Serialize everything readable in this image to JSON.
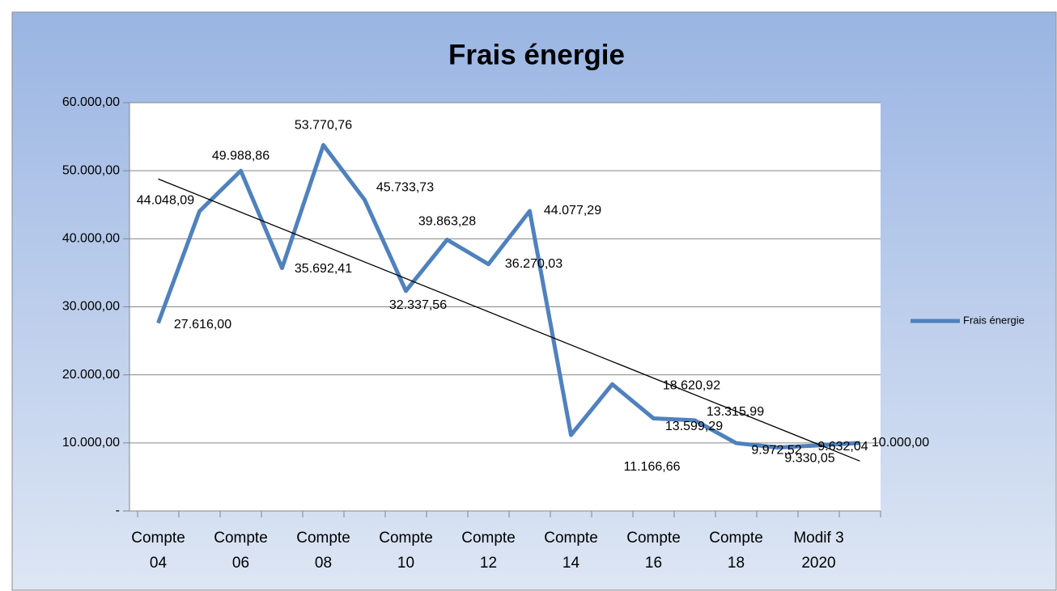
{
  "chart_data": {
    "type": "line",
    "title": "Frais énergie",
    "categories": [
      "Compte 04",
      null,
      "Compte 06",
      null,
      "Compte 08",
      null,
      "Compte 10",
      null,
      "Compte 12",
      null,
      "Compte 14",
      null,
      "Compte 16",
      null,
      "Compte 18",
      null,
      "Modif 3 2020",
      null
    ],
    "series": [
      {
        "name": "Frais énergie",
        "color": "#4f81bd",
        "values": [
          27616.0,
          44048.09,
          49988.86,
          35692.41,
          53770.76,
          45733.73,
          32337.56,
          39863.28,
          36270.03,
          44077.29,
          11166.66,
          18620.92,
          13599.29,
          13315.99,
          9972.52,
          9330.05,
          9632.04,
          10000.0
        ],
        "value_labels": [
          "27.616,00",
          "44.048,09",
          "49.988,86",
          "35.692,41",
          "53.770,76",
          "45.733,73",
          "32.337,56",
          "39.863,28",
          "36.270,03",
          "44.077,29",
          "11.166,66",
          "18.620,92",
          "13.599,29",
          "13.315,99",
          "9.972,52",
          "9.330,05",
          "9.632,04",
          "10.000,00"
        ]
      }
    ],
    "ylim": [
      0,
      60000
    ],
    "yticks": [
      {
        "value": 0,
        "label": "-"
      },
      {
        "value": 10000,
        "label": "10.000,00"
      },
      {
        "value": 20000,
        "label": "20.000,00"
      },
      {
        "value": 30000,
        "label": "30.000,00"
      },
      {
        "value": 40000,
        "label": "40.000,00"
      },
      {
        "value": 50000,
        "label": "50.000,00"
      },
      {
        "value": 60000,
        "label": "60.000,00"
      }
    ],
    "grid": true,
    "trendline": true,
    "legend": "right"
  }
}
